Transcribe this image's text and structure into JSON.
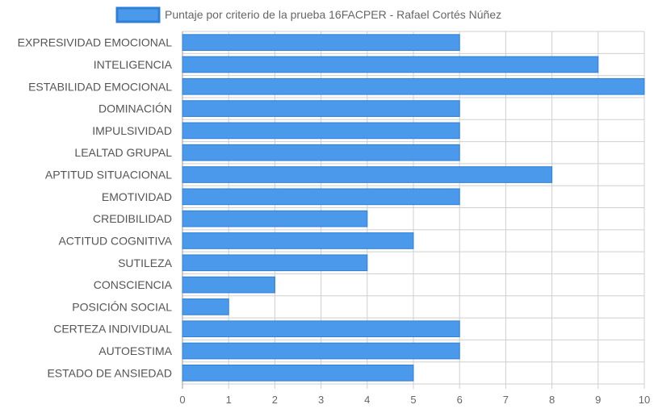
{
  "chart_data": {
    "type": "bar",
    "orientation": "horizontal",
    "title": "",
    "legend": {
      "position": "top",
      "entries": [
        "Puntaje por criterio de la prueba 16FACPER - Rafael Cortés Núñez"
      ]
    },
    "categories": [
      "EXPRESIVIDAD EMOCIONAL",
      "INTELIGENCIA",
      "ESTABILIDAD EMOCIONAL",
      "DOMINACIÓN",
      "IMPULSIVIDAD",
      "LEALTAD GRUPAL",
      "APTITUD SITUACIONAL",
      "EMOTIVIDAD",
      "CREDIBILIDAD",
      "ACTITUD COGNITIVA",
      "SUTILEZA",
      "CONSCIENCIA",
      "POSICIÓN SOCIAL",
      "CERTEZA INDIVIDUAL",
      "AUTOESTIMA",
      "ESTADO DE ANSIEDAD"
    ],
    "series": [
      {
        "name": "Puntaje por criterio de la prueba 16FACPER - Rafael Cortés Núñez",
        "values": [
          6,
          9,
          10,
          6,
          6,
          6,
          8,
          6,
          4,
          5,
          4,
          2,
          1,
          6,
          6,
          5
        ],
        "color": "#4a99ea",
        "border_color": "#2e7fd8"
      }
    ],
    "xlim": [
      0,
      10
    ],
    "x_ticks": [
      "0",
      "1",
      "2",
      "3",
      "4",
      "5",
      "6",
      "7",
      "8",
      "9",
      "10"
    ],
    "grid": true
  }
}
